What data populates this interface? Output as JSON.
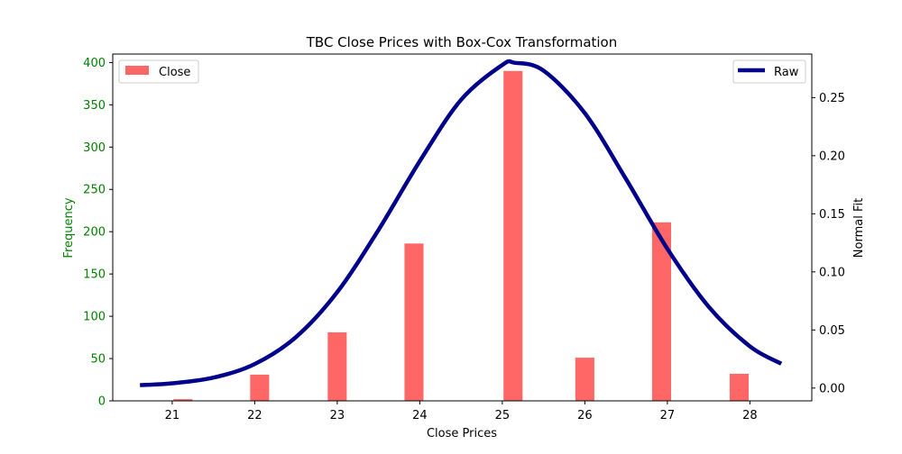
{
  "chart_data": {
    "type": "bar",
    "title": "TBC Close Prices with Box-Cox Transformation",
    "xlabel": "Close Prices",
    "ylabel_left": "Frequency",
    "ylabel_right": "Normal Fit",
    "xlim": [
      20.28,
      28.75
    ],
    "ylim_left": [
      0,
      410
    ],
    "ylim_right": [
      -0.011,
      0.2875
    ],
    "x_ticks": [
      21,
      22,
      23,
      24,
      25,
      26,
      27,
      28
    ],
    "y_left_ticks": [
      0,
      50,
      100,
      150,
      200,
      250,
      300,
      350,
      400
    ],
    "y_right_ticks": [
      0.0,
      0.05,
      0.1,
      0.15,
      0.2,
      0.25
    ],
    "y_right_tick_labels": [
      "0.00",
      "0.05",
      "0.10",
      "0.15",
      "0.20",
      "0.25"
    ],
    "bar_width": 0.23,
    "series": [
      {
        "name": "Close",
        "axis": "left",
        "color": "#ff6666",
        "x": [
          21.13,
          22.06,
          23.0,
          23.93,
          25.13,
          26.0,
          26.93,
          27.87
        ],
        "values": [
          2,
          31,
          81,
          186,
          390,
          51,
          211,
          32
        ]
      },
      {
        "name": "Raw",
        "axis": "right",
        "type": "line",
        "color": "#00008b",
        "x": [
          20.61,
          21.0,
          21.5,
          22.0,
          22.5,
          23.0,
          23.5,
          24.0,
          24.5,
          25.0,
          25.15,
          25.5,
          26.0,
          26.5,
          27.0,
          27.5,
          28.0,
          28.38
        ],
        "values": [
          0.0025,
          0.0041,
          0.009,
          0.0207,
          0.0439,
          0.0826,
          0.1361,
          0.1953,
          0.2481,
          0.2781,
          0.28,
          0.2732,
          0.2366,
          0.1798,
          0.1199,
          0.0701,
          0.0359,
          0.021
        ]
      }
    ],
    "legend_left": {
      "label": "Close",
      "placement": "upper-left"
    },
    "legend_right": {
      "label": "Raw",
      "placement": "upper-right"
    },
    "colors": {
      "left_axis": "#008000",
      "right_axis": "#000000",
      "bar": "#ff6666",
      "line": "#00008b"
    },
    "grid": false
  }
}
